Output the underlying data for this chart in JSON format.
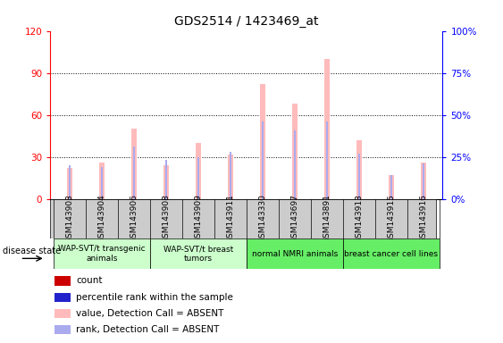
{
  "title": "GDS2514 / 1423469_at",
  "samples": [
    "GSM143903",
    "GSM143904",
    "GSM143906",
    "GSM143908",
    "GSM143909",
    "GSM143911",
    "GSM143330",
    "GSM143697",
    "GSM143891",
    "GSM143913",
    "GSM143915",
    "GSM143916"
  ],
  "value_absent": [
    22,
    26,
    50,
    24,
    40,
    32,
    82,
    68,
    100,
    42,
    17,
    26
  ],
  "rank_absent": [
    20,
    19,
    31,
    23,
    25,
    28,
    46,
    41,
    46,
    27,
    14,
    21
  ],
  "ylim_left": [
    0,
    120
  ],
  "ylim_right": [
    0,
    100
  ],
  "yticks_left": [
    0,
    30,
    60,
    90,
    120
  ],
  "yticks_right": [
    0,
    25,
    50,
    75,
    100
  ],
  "yticklabels_left": [
    "0",
    "30",
    "60",
    "90",
    "120"
  ],
  "yticklabels_right": [
    "0%",
    "25%",
    "50%",
    "75%",
    "100%"
  ],
  "pink_bar_width": 0.18,
  "blue_bar_width": 0.07,
  "value_bar_color": "#ffbbbb",
  "rank_bar_color": "#aaaaee",
  "bg_color": "#ffffff",
  "grid_color": "#000000",
  "group_colors": [
    "#ccffcc",
    "#ccffcc",
    "#66ee66",
    "#66ee66"
  ],
  "group_labels": [
    "WAP-SVT/t transgenic\nanimals",
    "WAP-SVT/t breast\ntumors",
    "normal NMRI animals",
    "breast cancer cell lines"
  ],
  "group_sample_ranges": [
    [
      0,
      3
    ],
    [
      3,
      6
    ],
    [
      6,
      9
    ],
    [
      9,
      12
    ]
  ],
  "sample_box_color": "#cccccc",
  "legend_items": [
    {
      "label": "count",
      "color": "#cc0000"
    },
    {
      "label": "percentile rank within the sample",
      "color": "#2222cc"
    },
    {
      "label": "value, Detection Call = ABSENT",
      "color": "#ffbbbb"
    },
    {
      "label": "rank, Detection Call = ABSENT",
      "color": "#aaaaee"
    }
  ]
}
